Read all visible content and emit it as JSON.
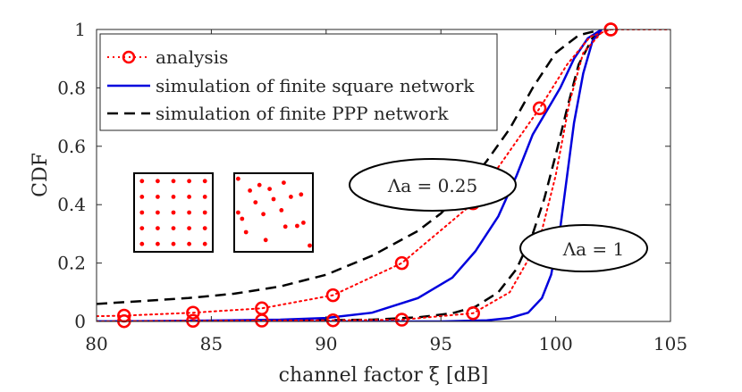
{
  "chart_data": {
    "type": "line",
    "title": "",
    "xlabel": "channel factor ξ [dB]",
    "ylabel": "CDF",
    "xlim": [
      80,
      105
    ],
    "ylim": [
      0,
      1
    ],
    "xticks": [
      80,
      85,
      90,
      95,
      100,
      105
    ],
    "yticks": [
      0,
      0.2,
      0.4,
      0.6,
      0.8,
      1
    ],
    "xtick_labels": [
      "80",
      "85",
      "90",
      "95",
      "100",
      "105"
    ],
    "ytick_labels": [
      "0",
      "0.2",
      "0.4",
      "0.6",
      "0.8",
      "1"
    ],
    "grid": false,
    "legend": {
      "position": "top-left",
      "entries": [
        {
          "name": "analysis",
          "style": "dotted-red-circle-markers"
        },
        {
          "name": "simulation of finite square network",
          "style": "solid-blue"
        },
        {
          "name": "simulation of finite PPP network",
          "style": "dashed-black"
        }
      ]
    },
    "annotations": [
      {
        "text": "Λa = 0.25",
        "near": "left group of curves"
      },
      {
        "text": "Λa = 1",
        "near": "right group of curves"
      }
    ],
    "series": [
      {
        "name": "analysis",
        "case": "Λa = 0.25",
        "color": "#ff0000",
        "x": [
          80,
          81.2,
          84.2,
          87.2,
          90.3,
          93.3,
          96.4,
          99.3,
          100.5,
          101.5,
          102.4,
          105
        ],
        "y": [
          0.018,
          0.02,
          0.03,
          0.045,
          0.09,
          0.2,
          0.405,
          0.73,
          0.88,
          0.975,
          1.0,
          1.0
        ],
        "markers_x": [
          81.2,
          84.2,
          87.2,
          90.3,
          93.3,
          96.4,
          99.3,
          102.4
        ],
        "markers_y": [
          0.02,
          0.03,
          0.045,
          0.09,
          0.2,
          0.405,
          0.73,
          1.0
        ]
      },
      {
        "name": "analysis",
        "case": "Λa = 1",
        "color": "#ff0000",
        "x": [
          80,
          81.2,
          84.2,
          87.2,
          90.3,
          93.3,
          96.4,
          98.0,
          99.3,
          100.0,
          100.6,
          101.2,
          102.0,
          102.4
        ],
        "y": [
          0,
          0.001,
          0.002,
          0.003,
          0.004,
          0.006,
          0.028,
          0.1,
          0.28,
          0.5,
          0.75,
          0.92,
          0.99,
          1.0
        ],
        "markers_x": [
          81.2,
          84.2,
          87.2,
          90.3,
          93.3,
          96.4,
          99.3,
          102.4
        ],
        "markers_y": [
          0.001,
          0.002,
          0.003,
          0.004,
          0.006,
          0.028,
          0.28,
          1.0
        ]
      },
      {
        "name": "simulation of finite square network",
        "case": "Λa = 0.25",
        "color": "#0000dd",
        "x": [
          80,
          84,
          88,
          90,
          92,
          94,
          95.5,
          96.5,
          97.5,
          98.3,
          99.0,
          99.6,
          100.2,
          100.8,
          101.4,
          102.0
        ],
        "y": [
          0,
          0.002,
          0.006,
          0.012,
          0.03,
          0.08,
          0.15,
          0.24,
          0.36,
          0.5,
          0.64,
          0.72,
          0.8,
          0.9,
          0.97,
          1.0
        ],
        "markers_x": [],
        "markers_y": []
      },
      {
        "name": "simulation of finite square network",
        "case": "Λa = 1",
        "color": "#0000dd",
        "x": [
          80,
          95,
          97,
          98,
          98.8,
          99.4,
          99.8,
          100.2,
          100.5,
          100.8,
          101.2,
          101.6,
          102.0
        ],
        "y": [
          0,
          0,
          0.004,
          0.012,
          0.03,
          0.08,
          0.16,
          0.32,
          0.5,
          0.68,
          0.85,
          0.96,
          1.0
        ],
        "markers_x": [],
        "markers_y": []
      },
      {
        "name": "simulation of finite PPP network",
        "case": "Λa = 0.25",
        "color": "#000000",
        "x": [
          80,
          82,
          84,
          86,
          88,
          90,
          92,
          94,
          95,
          96,
          97,
          98,
          99,
          100,
          101,
          102
        ],
        "y": [
          0.06,
          0.07,
          0.08,
          0.095,
          0.12,
          0.16,
          0.225,
          0.31,
          0.37,
          0.45,
          0.55,
          0.66,
          0.8,
          0.92,
          0.98,
          1.0
        ],
        "markers_x": [],
        "markers_y": []
      },
      {
        "name": "simulation of finite PPP network",
        "case": "Λa = 1",
        "color": "#000000",
        "x": [
          80,
          88,
          92,
          94,
          95.5,
          96.5,
          97.5,
          98.3,
          99.0,
          99.5,
          100.0,
          100.5,
          101.0,
          101.6,
          102.2
        ],
        "y": [
          0,
          0.002,
          0.006,
          0.014,
          0.028,
          0.05,
          0.1,
          0.18,
          0.3,
          0.42,
          0.57,
          0.73,
          0.88,
          0.97,
          1.0
        ],
        "markers_x": [],
        "markers_y": []
      }
    ],
    "insets": [
      {
        "name": "square-lattice-inset",
        "points": [
          [
            0.1,
            0.1
          ],
          [
            0.3,
            0.1
          ],
          [
            0.5,
            0.1
          ],
          [
            0.7,
            0.1
          ],
          [
            0.9,
            0.1
          ],
          [
            0.1,
            0.3
          ],
          [
            0.3,
            0.3
          ],
          [
            0.5,
            0.3
          ],
          [
            0.7,
            0.3
          ],
          [
            0.9,
            0.3
          ],
          [
            0.1,
            0.5
          ],
          [
            0.3,
            0.5
          ],
          [
            0.5,
            0.5
          ],
          [
            0.7,
            0.5
          ],
          [
            0.9,
            0.5
          ],
          [
            0.1,
            0.7
          ],
          [
            0.3,
            0.7
          ],
          [
            0.5,
            0.7
          ],
          [
            0.7,
            0.7
          ],
          [
            0.9,
            0.7
          ],
          [
            0.1,
            0.9
          ],
          [
            0.3,
            0.9
          ],
          [
            0.5,
            0.9
          ],
          [
            0.7,
            0.9
          ],
          [
            0.9,
            0.9
          ]
        ]
      },
      {
        "name": "ppp-random-inset",
        "points": [
          [
            0.05,
            0.07
          ],
          [
            0.2,
            0.22
          ],
          [
            0.32,
            0.15
          ],
          [
            0.45,
            0.2
          ],
          [
            0.63,
            0.12
          ],
          [
            0.85,
            0.27
          ],
          [
            0.27,
            0.37
          ],
          [
            0.5,
            0.33
          ],
          [
            0.72,
            0.3
          ],
          [
            0.05,
            0.5
          ],
          [
            0.1,
            0.58
          ],
          [
            0.37,
            0.52
          ],
          [
            0.6,
            0.47
          ],
          [
            0.15,
            0.75
          ],
          [
            0.65,
            0.68
          ],
          [
            0.8,
            0.67
          ],
          [
            0.88,
            0.63
          ],
          [
            0.4,
            0.85
          ],
          [
            0.96,
            0.92
          ]
        ]
      }
    ]
  }
}
